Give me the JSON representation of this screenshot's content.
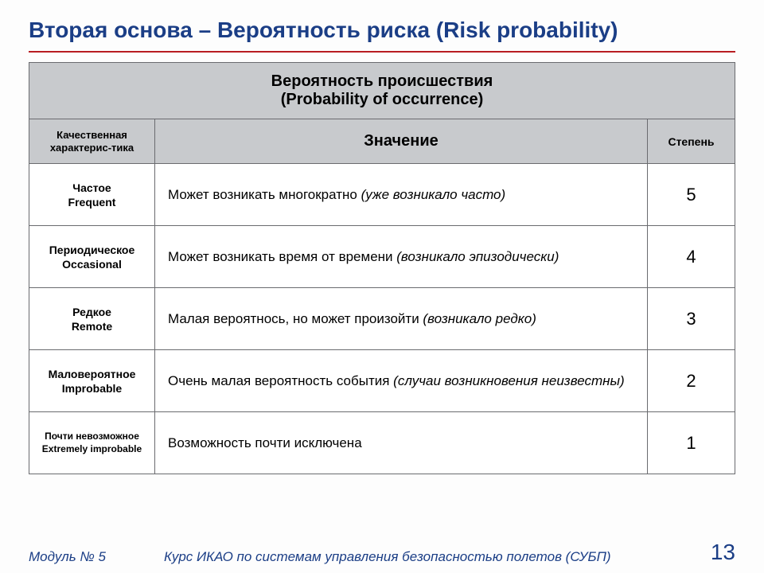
{
  "colors": {
    "title": "#1b3e86",
    "rule": "#b81d22",
    "header_bg": "#c8cacd",
    "footer": "#1b3e86",
    "watermark": "#f1f2f3"
  },
  "watermark_text": "OACI",
  "title": "Вторая основа – Вероятность риска (Risk probability)",
  "table": {
    "main_header": "Вероятность происшествия\n(Probability of occurrence)",
    "columns": {
      "qual": "Качественная характерис-тика",
      "meaning": "Значение",
      "degree": "Степень"
    },
    "rows": [
      {
        "qual_ru": "Частое",
        "qual_en": "Frequent",
        "meaning_plain": "Может возникать многократно ",
        "meaning_paren": "(уже возникало часто)",
        "degree": "5"
      },
      {
        "qual_ru": "Периодическое",
        "qual_en": "Occasional",
        "meaning_plain": "Может возникать время от времени ",
        "meaning_paren": "(возникало эпизодически)",
        "degree": "4"
      },
      {
        "qual_ru": "Редкое",
        "qual_en": "Remote",
        "meaning_plain": "Малая вероятнось, но может произойти ",
        "meaning_paren": "(возникало редко)",
        "degree": "3"
      },
      {
        "qual_ru": "Маловероятное",
        "qual_en": "Improbable",
        "meaning_plain": "Очень малая вероятность события ",
        "meaning_paren": "(случаи возникновения неизвестны)",
        "degree": "2"
      },
      {
        "qual_ru": "Почти невозможное",
        "qual_en": "Extremely improbable",
        "meaning_plain": "Возможность почти исключена",
        "meaning_paren": "",
        "degree": "1",
        "compact": true
      }
    ]
  },
  "footer": {
    "module": "Модуль № 5",
    "course": "Курс ИКАО по системам управления безопасностью полетов (СУБП)",
    "page": "13"
  }
}
